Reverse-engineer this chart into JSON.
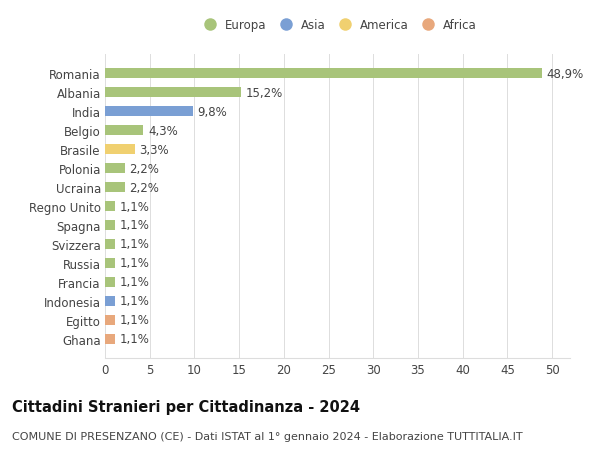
{
  "categories": [
    "Ghana",
    "Egitto",
    "Indonesia",
    "Francia",
    "Russia",
    "Svizzera",
    "Spagna",
    "Regno Unito",
    "Ucraina",
    "Polonia",
    "Brasile",
    "Belgio",
    "India",
    "Albania",
    "Romania"
  ],
  "values": [
    1.1,
    1.1,
    1.1,
    1.1,
    1.1,
    1.1,
    1.1,
    1.1,
    2.2,
    2.2,
    3.3,
    4.3,
    9.8,
    15.2,
    48.9
  ],
  "colors": [
    "#e8a87c",
    "#e8a87c",
    "#7a9fd4",
    "#a8c47a",
    "#a8c47a",
    "#a8c47a",
    "#a8c47a",
    "#a8c47a",
    "#a8c47a",
    "#a8c47a",
    "#f0d070",
    "#a8c47a",
    "#7a9fd4",
    "#a8c47a",
    "#a8c47a"
  ],
  "labels": [
    "1,1%",
    "1,1%",
    "1,1%",
    "1,1%",
    "1,1%",
    "1,1%",
    "1,1%",
    "1,1%",
    "2,2%",
    "2,2%",
    "3,3%",
    "4,3%",
    "9,8%",
    "15,2%",
    "48,9%"
  ],
  "legend_labels": [
    "Europa",
    "Asia",
    "America",
    "Africa"
  ],
  "legend_colors": [
    "#a8c47a",
    "#7a9fd4",
    "#f0d070",
    "#e8a87c"
  ],
  "xlim": [
    0,
    52
  ],
  "xticks": [
    0,
    5,
    10,
    15,
    20,
    25,
    30,
    35,
    40,
    45,
    50
  ],
  "title": "Cittadini Stranieri per Cittadinanza - 2024",
  "subtitle": "COMUNE DI PRESENZANO (CE) - Dati ISTAT al 1° gennaio 2024 - Elaborazione TUTTITALIA.IT",
  "bg_color": "#ffffff",
  "bar_height": 0.55,
  "label_fontsize": 8.5,
  "title_fontsize": 10.5,
  "subtitle_fontsize": 8,
  "ytick_fontsize": 8.5,
  "xtick_fontsize": 8.5,
  "grid_color": "#dddddd",
  "text_color": "#444444"
}
